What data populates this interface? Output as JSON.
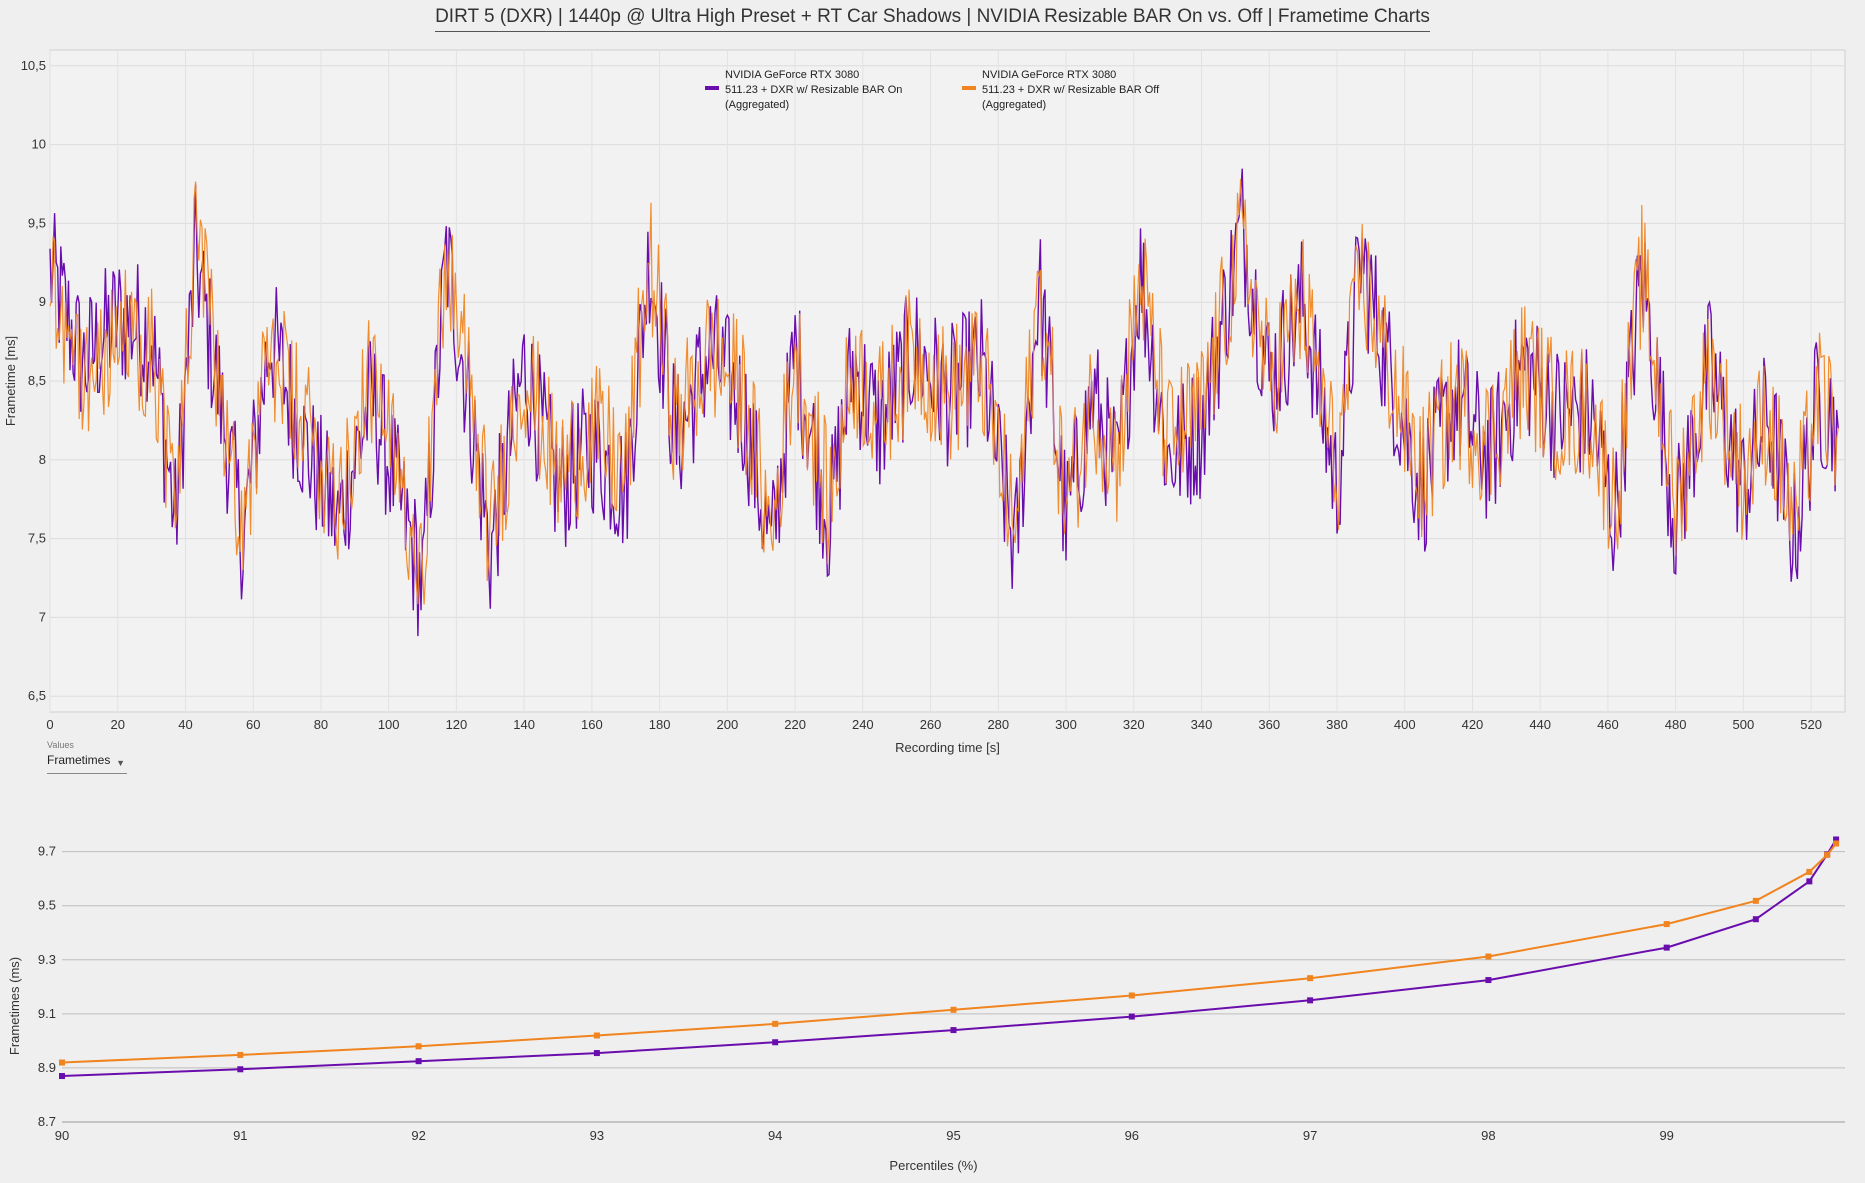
{
  "title": "DIRT 5 (DXR) | 1440p @ Ultra High Preset + RT Car Shadows | NVIDIA Resizable BAR On vs. Off | Frametime Charts",
  "values_dropdown": {
    "caption": "Values",
    "selected": "Frametimes"
  },
  "colors": {
    "on": "#6a0dad",
    "off": "#f0841f"
  },
  "chart_data": [
    {
      "type": "line",
      "ylabel": "Frametime [ms]",
      "xlabel": "Recording time [s]",
      "xlim": [
        0,
        530
      ],
      "ylim": [
        6.4,
        10.6
      ],
      "x_ticks": [
        "0",
        "20",
        "40",
        "60",
        "80",
        "100",
        "120",
        "140",
        "160",
        "180",
        "200",
        "220",
        "240",
        "260",
        "280",
        "300",
        "320",
        "340",
        "360",
        "380",
        "400",
        "420",
        "440",
        "460",
        "480",
        "500",
        "520"
      ],
      "y_ticks": [
        "6,5",
        "7",
        "7,5",
        "8",
        "8,5",
        "9",
        "9,5",
        "10",
        "10,5"
      ],
      "y_tick_values": [
        6.5,
        7,
        7.5,
        8,
        8.5,
        9,
        9.5,
        10,
        10.5
      ],
      "legend": [
        {
          "line1": "NVIDIA GeForce RTX 3080",
          "line2": "511.23 + DXR w/ Resizable BAR On",
          "line3": "(Aggregated)",
          "color": "#6a0dad"
        },
        {
          "line1": "NVIDIA GeForce RTX 3080",
          "line2": "511.23 + DXR w/ Resizable BAR Off",
          "line3": "(Aggregated)",
          "color": "#f0841f"
        }
      ],
      "series": [
        {
          "x": [
            0,
            10,
            20,
            30,
            37,
            43,
            50,
            57,
            65,
            75,
            85,
            95,
            100,
            110,
            117,
            125,
            130,
            140,
            150,
            160,
            170,
            177,
            185,
            195,
            205,
            213,
            220,
            230,
            237,
            245,
            255,
            265,
            275,
            285,
            292,
            300,
            308,
            315,
            322,
            330,
            340,
            352,
            360,
            370,
            380,
            387,
            395,
            405,
            415,
            425,
            435,
            445,
            455,
            462,
            470,
            480,
            490,
            500,
            507,
            515,
            522,
            528
          ],
          "y": [
            9.2,
            8.6,
            8.9,
            8.8,
            7.6,
            9.3,
            8.4,
            7.5,
            8.8,
            8.1,
            7.6,
            8.4,
            8.0,
            7.2,
            9.3,
            8.2,
            7.4,
            8.6,
            7.8,
            8.1,
            7.8,
            9.3,
            8.1,
            8.7,
            8.3,
            7.4,
            8.7,
            7.6,
            8.6,
            8.2,
            8.7,
            8.4,
            8.6,
            7.4,
            9.1,
            7.6,
            8.4,
            7.9,
            9.2,
            8.0,
            8.2,
            9.5,
            8.5,
            9.0,
            7.8,
            9.3,
            8.6,
            7.8,
            8.4,
            8.0,
            8.6,
            8.3,
            8.3,
            7.6,
            9.2,
            7.6,
            8.6,
            7.8,
            8.3,
            7.5,
            8.4,
            8.2
          ]
        },
        {
          "x": [
            0,
            10,
            20,
            30,
            37,
            43,
            50,
            57,
            65,
            75,
            85,
            95,
            100,
            110,
            117,
            125,
            130,
            140,
            150,
            160,
            170,
            177,
            185,
            195,
            205,
            213,
            220,
            230,
            237,
            245,
            255,
            265,
            275,
            285,
            292,
            300,
            308,
            315,
            322,
            330,
            340,
            352,
            360,
            370,
            380,
            387,
            395,
            405,
            415,
            425,
            435,
            445,
            455,
            462,
            470,
            480,
            490,
            500,
            507,
            515,
            522,
            528
          ],
          "y": [
            9.2,
            8.5,
            8.8,
            8.7,
            7.7,
            9.4,
            8.5,
            7.6,
            8.7,
            8.2,
            7.8,
            8.5,
            8.1,
            7.4,
            9.3,
            8.3,
            7.5,
            8.6,
            7.9,
            8.2,
            7.9,
            9.3,
            8.2,
            8.7,
            8.4,
            7.5,
            8.7,
            7.7,
            8.6,
            8.3,
            8.7,
            8.4,
            8.6,
            7.5,
            9.1,
            7.7,
            8.4,
            8.0,
            9.2,
            8.1,
            8.3,
            9.4,
            8.5,
            9.0,
            7.9,
            9.2,
            8.6,
            7.9,
            8.4,
            8.1,
            8.6,
            8.3,
            8.3,
            7.7,
            9.2,
            7.7,
            8.6,
            7.9,
            8.3,
            7.6,
            8.4,
            8.2
          ]
        }
      ]
    },
    {
      "type": "line",
      "ylabel": "Frametimes (ms)",
      "xlabel": "Percentiles (%)",
      "xlim": [
        90,
        100
      ],
      "ylim": [
        8.7,
        9.78
      ],
      "x_ticks": [
        "90",
        "91",
        "92",
        "93",
        "94",
        "95",
        "96",
        "97",
        "98",
        "99"
      ],
      "x_tick_values": [
        90,
        91,
        92,
        93,
        94,
        95,
        96,
        97,
        98,
        99
      ],
      "y_ticks": [
        "8.7",
        "8.9",
        "9.1",
        "9.3",
        "9.5",
        "9.7"
      ],
      "y_tick_values": [
        8.7,
        8.9,
        9.1,
        9.3,
        9.5,
        9.7
      ],
      "series": [
        {
          "x": [
            90,
            91,
            92,
            93,
            94,
            95,
            96,
            97,
            98,
            99,
            99.5,
            99.8,
            99.9,
            99.95
          ],
          "y": [
            8.87,
            8.895,
            8.925,
            8.955,
            8.995,
            9.04,
            9.09,
            9.15,
            9.225,
            9.345,
            9.45,
            9.59,
            9.69,
            9.745
          ]
        },
        {
          "x": [
            90,
            91,
            92,
            93,
            94,
            95,
            96,
            97,
            98,
            99,
            99.5,
            99.8,
            99.9,
            99.95
          ],
          "y": [
            8.92,
            8.948,
            8.98,
            9.02,
            9.063,
            9.115,
            9.168,
            9.232,
            9.312,
            9.432,
            9.518,
            9.625,
            9.688,
            9.73
          ]
        }
      ]
    }
  ]
}
